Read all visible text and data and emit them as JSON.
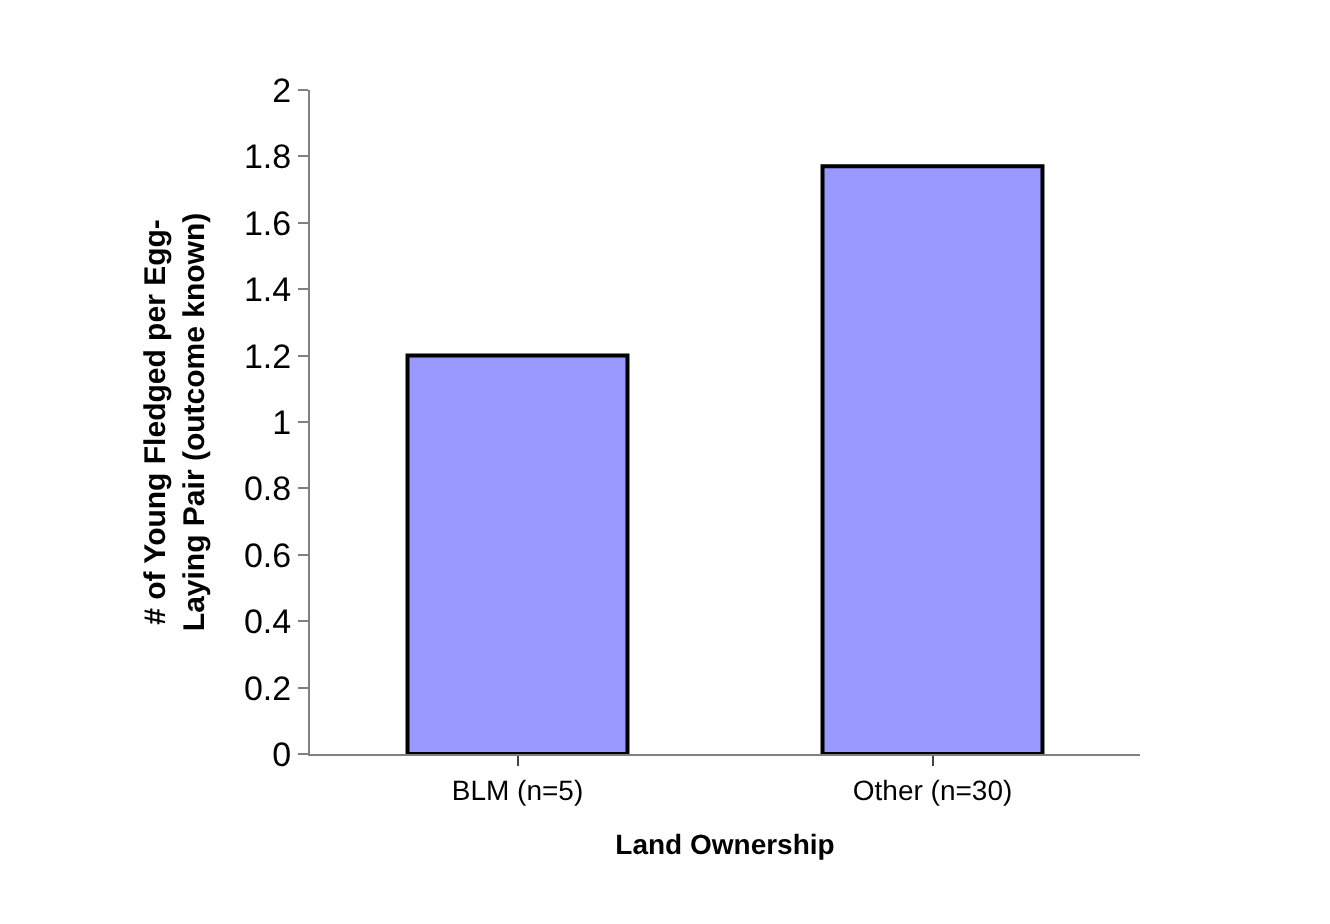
{
  "chart_data": {
    "type": "bar",
    "xlabel": "Land Ownership",
    "ylabel": "# of Young Fledged per Egg-\nLaying Pair (outcome known)",
    "categories": [
      "BLM (n=5)",
      "Other (n=30)"
    ],
    "values": [
      1.2,
      1.77
    ],
    "color": "#9999ff",
    "ylim": [
      0,
      2
    ],
    "yticks": [
      0,
      0.2,
      0.4,
      0.6,
      0.8,
      1,
      1.2,
      1.4,
      1.6,
      1.8,
      2
    ]
  }
}
